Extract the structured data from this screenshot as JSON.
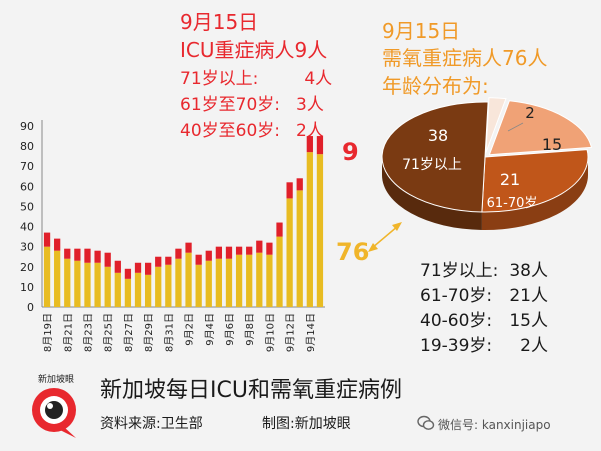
{
  "icu": {
    "date": "9月15日",
    "total": "ICU重症病人9人",
    "rows": [
      {
        "label": "71岁以上:",
        "value": "4人"
      },
      {
        "label": "61岁至70岁:",
        "value": "3人"
      },
      {
        "label": "40岁至60岁:",
        "value": "2人"
      }
    ]
  },
  "oxygen": {
    "date": "9月15日",
    "total": "需氧重症病人76人",
    "subtitle": "年龄分布为:",
    "rows": [
      {
        "label": "71岁以上:",
        "value": "38人"
      },
      {
        "label": "61-70岁:",
        "value": "21人"
      },
      {
        "label": "40-60岁:",
        "value": "15人"
      },
      {
        "label": "19-39岁:",
        "value": "2人"
      }
    ]
  },
  "callouts": {
    "icu_latest": "9",
    "oxygen_latest": "76"
  },
  "footer": {
    "title": "新加坡每日ICU和需氧重症病例",
    "source": "资料来源:卫生部",
    "made_by": "制图:新加坡眼",
    "wechat": "微信号: kanxinjiapo",
    "logo_text": "新加坡眼"
  },
  "colors": {
    "icu": "#e0202a",
    "oxygen": "#e8bc22",
    "pie_71plus": "#7a3a12",
    "pie_61_70": "#c0561a",
    "pie_40_60": "#f0a276",
    "pie_19_39": "#f8e6da"
  },
  "chart_data": [
    {
      "type": "bar",
      "stacked": true,
      "title": "新加坡每日ICU和需氧重症病例",
      "categories": [
        "8月19日",
        "8月20日",
        "8月21日",
        "8月22日",
        "8月23日",
        "8月24日",
        "8月25日",
        "8月26日",
        "8月27日",
        "8月28日",
        "8月29日",
        "8月30日",
        "8月31日",
        "9月1日",
        "9月2日",
        "9月3日",
        "9月4日",
        "9月5日",
        "9月6日",
        "9月7日",
        "9月8日",
        "9月9日",
        "9月10日",
        "9月11日",
        "9月12日",
        "9月13日",
        "9月14日",
        "9月15日"
      ],
      "tick_labels": [
        "8月19日",
        "8月21日",
        "8月23日",
        "8月25日",
        "8月27日",
        "8月29日",
        "8月31日",
        "9月2日",
        "9月4日",
        "9月6日",
        "9月8日",
        "9月10日",
        "9月12日",
        "9月14日"
      ],
      "series": [
        {
          "name": "需氧重症",
          "values": [
            30,
            28,
            24,
            23,
            22,
            22,
            20,
            17,
            14,
            17,
            16,
            20,
            21,
            24,
            27,
            21,
            23,
            24,
            24,
            26,
            26,
            27,
            26,
            35,
            54,
            58,
            77,
            76
          ]
        },
        {
          "name": "ICU",
          "values": [
            7,
            6,
            5,
            6,
            7,
            6,
            7,
            6,
            5,
            5,
            6,
            5,
            4,
            5,
            5,
            5,
            5,
            6,
            6,
            4,
            4,
            6,
            6,
            7,
            8,
            6,
            8,
            9
          ]
        }
      ],
      "ylim": [
        0,
        90
      ],
      "yticks": [
        0,
        10,
        20,
        30,
        40,
        50,
        60,
        70,
        80,
        90
      ],
      "grid": false
    },
    {
      "type": "pie",
      "title": "9月15日需氧重症病人76人年龄分布",
      "labels": [
        "71岁以上",
        "61-70岁",
        "40-60岁",
        "19-39岁"
      ],
      "values": [
        38,
        21,
        15,
        2
      ]
    }
  ]
}
